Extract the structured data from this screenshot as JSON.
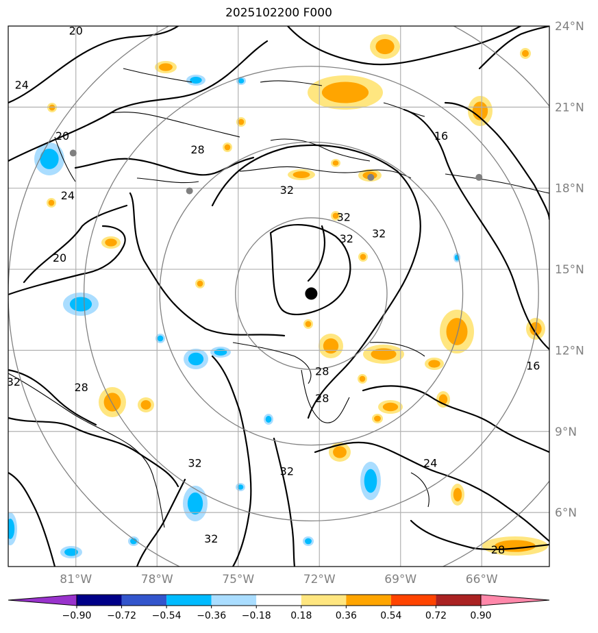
{
  "title": "2025102200 F000",
  "map": {
    "lon_range": [
      -83.5,
      -63.5
    ],
    "lat_range": [
      4.0,
      24.0
    ],
    "lon_ticks": [
      {
        "lon": -81,
        "label": "81°W"
      },
      {
        "lon": -78,
        "label": "78°W"
      },
      {
        "lon": -75,
        "label": "75°W"
      },
      {
        "lon": -72,
        "label": "72°W"
      },
      {
        "lon": -69,
        "label": "69°W"
      },
      {
        "lon": -66,
        "label": "66°W"
      }
    ],
    "lat_ticks": [
      {
        "lat": 24,
        "label": "24°N"
      },
      {
        "lat": 21,
        "label": "21°N"
      },
      {
        "lat": 18,
        "label": "18°N"
      },
      {
        "lat": 15,
        "label": "15°N"
      },
      {
        "lat": 12,
        "label": "12°N"
      },
      {
        "lat": 9,
        "label": "9°N"
      },
      {
        "lat": 6,
        "label": "6°N"
      }
    ],
    "grid": true,
    "center": {
      "lon": -72.3,
      "lat": 14.1
    },
    "range_rings_deg": [
      2.8,
      5.6,
      8.4,
      11.2
    ],
    "contour_labels": [
      {
        "text": "20",
        "lon": -81.0,
        "lat": 23.8
      },
      {
        "text": "24",
        "lon": -83.0,
        "lat": 21.8
      },
      {
        "text": "20",
        "lon": -81.5,
        "lat": 19.9
      },
      {
        "text": "24",
        "lon": -81.3,
        "lat": 17.7
      },
      {
        "text": "20",
        "lon": -81.6,
        "lat": 15.4
      },
      {
        "text": "28",
        "lon": -76.5,
        "lat": 19.4
      },
      {
        "text": "32",
        "lon": -73.2,
        "lat": 17.9
      },
      {
        "text": "32",
        "lon": -71.1,
        "lat": 16.9
      },
      {
        "text": "32",
        "lon": -71.0,
        "lat": 16.1
      },
      {
        "text": "32",
        "lon": -69.8,
        "lat": 16.3
      },
      {
        "text": "16",
        "lon": -67.5,
        "lat": 19.9
      },
      {
        "text": "16",
        "lon": -64.1,
        "lat": 11.4
      },
      {
        "text": "28",
        "lon": -71.9,
        "lat": 11.2
      },
      {
        "text": "28",
        "lon": -71.9,
        "lat": 10.2
      },
      {
        "text": "28",
        "lon": -80.8,
        "lat": 10.6
      },
      {
        "text": "32",
        "lon": -83.3,
        "lat": 10.8
      },
      {
        "text": "32",
        "lon": -76.6,
        "lat": 7.8
      },
      {
        "text": "32",
        "lon": -73.2,
        "lat": 7.5
      },
      {
        "text": "32",
        "lon": -76.0,
        "lat": 5.0
      },
      {
        "text": "24",
        "lon": -67.9,
        "lat": 7.8
      },
      {
        "text": "28",
        "lon": -65.4,
        "lat": 4.6
      }
    ]
  },
  "colorbar": {
    "levels": [
      "−0.90",
      "−0.72",
      "−0.54",
      "−0.36",
      "−0.18",
      "0.18",
      "0.36",
      "0.54",
      "0.72",
      "0.90"
    ],
    "colors": [
      "#9933cc",
      "#000088",
      "#3355cc",
      "#00bbff",
      "#aaddff",
      "#ffffff",
      "#ffe680",
      "#ffa500",
      "#ff4400",
      "#aa2222",
      "#ff88aa"
    ]
  },
  "colors": {
    "grid": "#b0b0b0",
    "rings": "#808080",
    "marker": "#000000",
    "station": "#808080"
  }
}
